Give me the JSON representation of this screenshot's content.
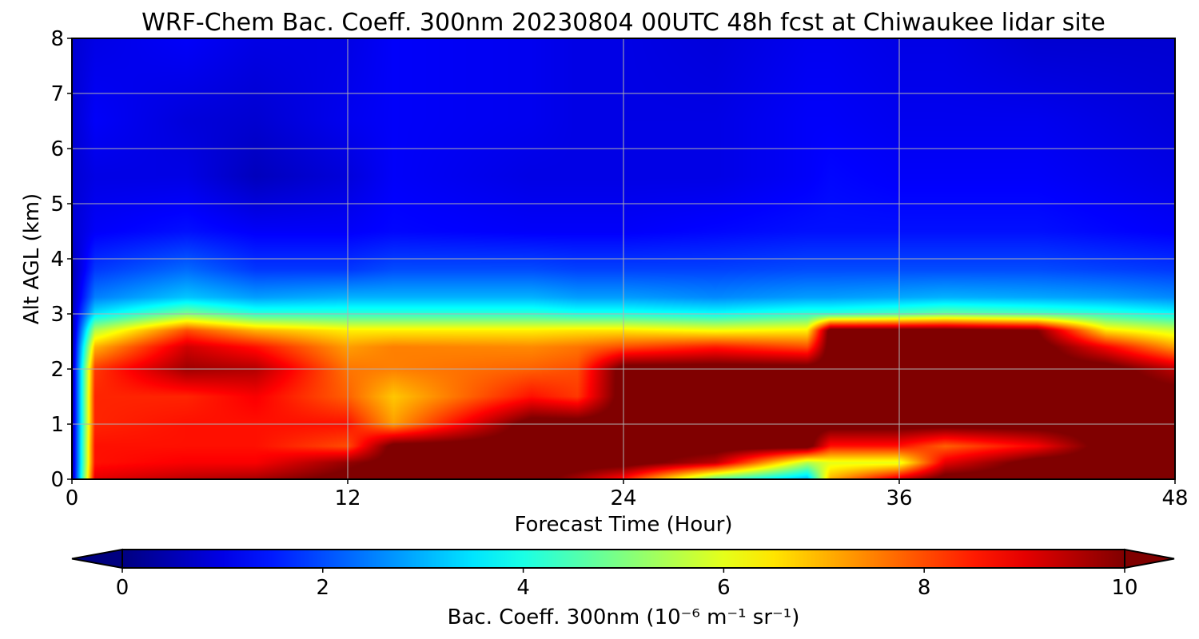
{
  "chart_data": {
    "type": "heatmap",
    "title": "WRF-Chem Bac. Coeff. 300nm  20230804 00UTC 48h fcst at Chiwaukee lidar site",
    "xlabel": "Forecast Time (Hour)",
    "ylabel": "Alt AGL (km)",
    "x_ticks": [
      "0",
      "12",
      "24",
      "36",
      "48"
    ],
    "y_ticks": [
      "0",
      "1",
      "2",
      "3",
      "4",
      "5",
      "6",
      "7",
      "8"
    ],
    "xlim": [
      0,
      48
    ],
    "ylim": [
      0,
      8
    ],
    "grid": true,
    "colormap": "jet",
    "colorbar": {
      "label": "Bac. Coeff. 300nm  (10⁻⁶ m⁻¹ sr⁻¹)",
      "ticks": [
        "0",
        "2",
        "4",
        "6",
        "8",
        "10"
      ],
      "range": [
        0,
        10
      ],
      "extend": "both"
    },
    "profile_times": [
      0,
      1,
      5,
      8,
      12,
      14,
      20,
      22,
      24,
      28,
      32,
      33,
      36,
      38,
      42,
      45,
      48
    ],
    "profile_altitudes_km": [
      0,
      0.3,
      0.6,
      1.0,
      1.5,
      2.0,
      2.4,
      2.7,
      3.0,
      3.3,
      3.8,
      4.5,
      5.5,
      6.5,
      8.0
    ],
    "values": [
      [
        0.3,
        0.3,
        0.3,
        0.3,
        0.3,
        0.3,
        0.3,
        0.3,
        0.5,
        0.5,
        0.5,
        0.8,
        0.8,
        0.8,
        0.8
      ],
      [
        9.0,
        8.6,
        8.6,
        8.4,
        8.4,
        8.2,
        7.0,
        5.5,
        3.5,
        2.5,
        1.8,
        1.2,
        1.0,
        1.2,
        1.0
      ],
      [
        9.4,
        8.8,
        8.6,
        8.6,
        8.4,
        9.7,
        9.2,
        8.0,
        5.0,
        3.2,
        2.3,
        1.4,
        1.0,
        0.9,
        1.2
      ],
      [
        9.6,
        8.8,
        8.6,
        8.6,
        8.8,
        9.5,
        8.6,
        7.0,
        4.2,
        2.8,
        1.8,
        1.2,
        0.6,
        0.8,
        1.0
      ],
      [
        10.3,
        9.8,
        8.0,
        8.6,
        7.8,
        7.6,
        7.2,
        6.4,
        4.2,
        3.0,
        1.8,
        1.2,
        0.9,
        1.1,
        1.0
      ],
      [
        10.4,
        10.3,
        10.3,
        7.2,
        6.8,
        7.5,
        7.5,
        6.4,
        4.2,
        3.0,
        2.0,
        1.3,
        1.2,
        1.2,
        1.2
      ],
      [
        10.4,
        10.4,
        10.4,
        10.4,
        8.6,
        7.8,
        7.4,
        6.4,
        4.2,
        3.0,
        2.0,
        1.2,
        1.0,
        1.1,
        1.1
      ],
      [
        9.6,
        10.4,
        10.4,
        10.4,
        8.2,
        8.0,
        7.6,
        6.5,
        4.0,
        2.8,
        1.9,
        1.2,
        1.0,
        1.0,
        1.0
      ],
      [
        8.6,
        10.4,
        10.4,
        10.4,
        10.4,
        10.4,
        8.0,
        6.5,
        4.0,
        2.8,
        1.9,
        1.2,
        1.0,
        1.0,
        1.0
      ],
      [
        4.6,
        9.4,
        10.4,
        10.4,
        10.4,
        10.4,
        8.5,
        6.2,
        3.8,
        2.6,
        1.9,
        1.3,
        1.0,
        1.0,
        0.9
      ],
      [
        3.0,
        5.5,
        10.4,
        10.4,
        10.4,
        10.4,
        8.0,
        6.4,
        4.2,
        2.8,
        2.0,
        1.4,
        1.2,
        1.2,
        1.1
      ],
      [
        7.0,
        6.0,
        8.6,
        10.4,
        10.4,
        10.4,
        10.4,
        10.4,
        4.2,
        2.8,
        2.0,
        1.4,
        1.3,
        1.2,
        1.1
      ],
      [
        9.2,
        6.0,
        8.6,
        10.4,
        10.4,
        10.4,
        10.4,
        10.4,
        4.5,
        2.9,
        2.0,
        1.4,
        1.2,
        1.1,
        1.0
      ],
      [
        10.4,
        9.0,
        7.8,
        10.4,
        10.4,
        10.4,
        10.4,
        10.4,
        4.8,
        3.0,
        2.0,
        1.4,
        1.2,
        1.1,
        1.0
      ],
      [
        10.4,
        10.4,
        8.8,
        10.4,
        10.4,
        10.4,
        10.4,
        10.0,
        4.5,
        2.9,
        2.0,
        1.4,
        1.2,
        1.1,
        0.8
      ],
      [
        10.4,
        10.4,
        10.4,
        10.4,
        10.4,
        10.4,
        8.8,
        6.5,
        4.2,
        2.8,
        1.9,
        1.3,
        1.1,
        1.0,
        0.8
      ],
      [
        10.4,
        10.4,
        10.4,
        10.4,
        10.4,
        9.4,
        7.2,
        5.8,
        3.8,
        2.6,
        1.8,
        1.2,
        1.0,
        0.9,
        0.8
      ]
    ]
  }
}
